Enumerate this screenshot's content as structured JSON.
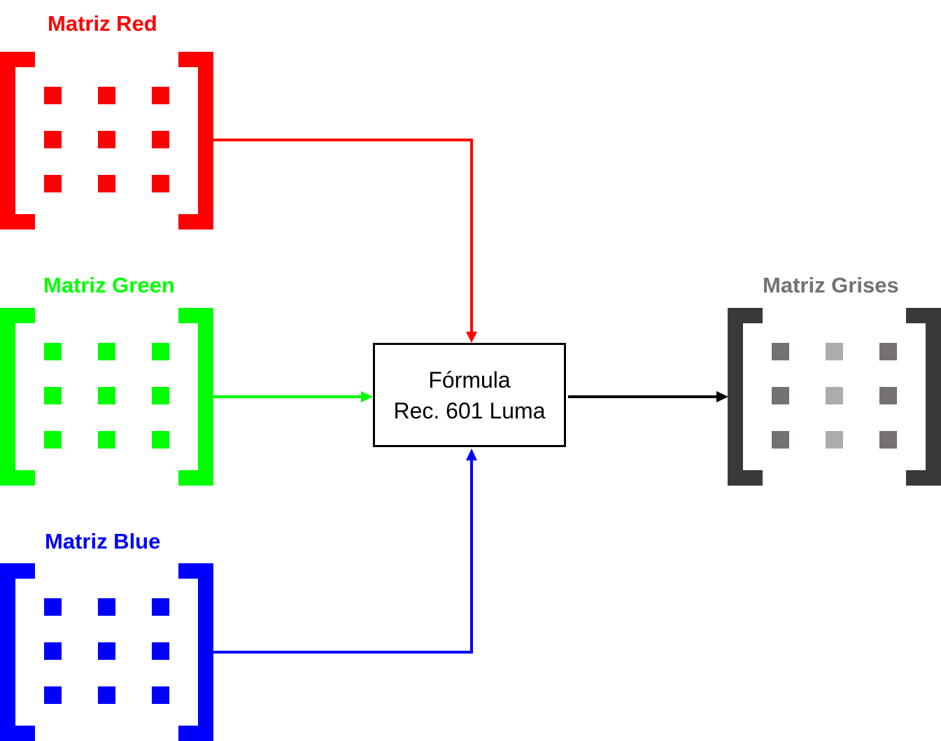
{
  "matrices": {
    "red": {
      "title": "Matriz Red",
      "color": "#ff0000",
      "cells": [
        "#ff0000",
        "#ff0000",
        "#ff0000",
        "#ff0000",
        "#ff0000",
        "#ff0000",
        "#ff0000",
        "#ff0000",
        "#ff0000"
      ]
    },
    "green": {
      "title": "Matriz Green",
      "color": "#00ff00",
      "cells": [
        "#00ff00",
        "#00ff00",
        "#00ff00",
        "#00ff00",
        "#00ff00",
        "#00ff00",
        "#00ff00",
        "#00ff00",
        "#00ff00"
      ]
    },
    "blue": {
      "title": "Matriz Blue",
      "color": "#0000ff",
      "cells": [
        "#0000ff",
        "#0000ff",
        "#0000ff",
        "#0000ff",
        "#0000ff",
        "#0000ff",
        "#0000ff",
        "#0000ff",
        "#0000ff"
      ]
    },
    "gray": {
      "title": "Matriz Grises",
      "title_color": "#767171",
      "color": "#3b3838",
      "cells": [
        "#767171",
        "#aeabab",
        "#767171",
        "#767171",
        "#aeabab",
        "#767171",
        "#767171",
        "#aeabab",
        "#767171"
      ]
    }
  },
  "formula": {
    "line1": "Fórmula",
    "line2": "Rec. 601 Luma"
  },
  "connectors": {
    "red": "#ff0000",
    "green": "#00ff00",
    "blue": "#0000ff",
    "output": "#000000"
  }
}
